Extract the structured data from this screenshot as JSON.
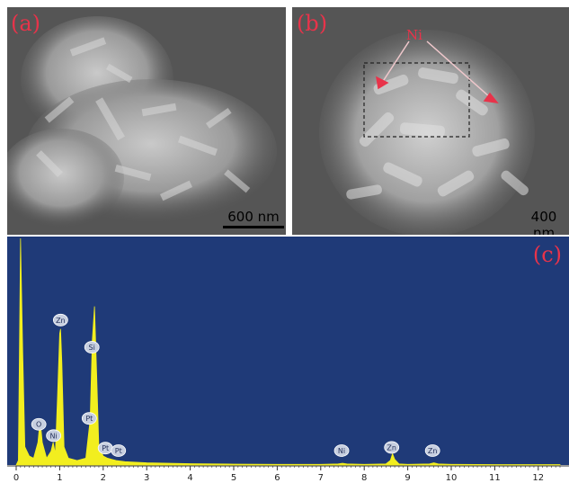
{
  "panels": {
    "a": {
      "label": "(a)",
      "scale_bar": "600 nm"
    },
    "b": {
      "label": "(b)",
      "scale_bar": "400 nm",
      "annotation": "Ni"
    },
    "c": {
      "label": "(c)"
    }
  },
  "colors": {
    "sem_background": "#5a5a5a",
    "spectrum_background": "#1f3a78",
    "spectrum_fill": "#f2ee1f",
    "panel_label": "#e8334a",
    "annotation_arrow": "#e8334a"
  },
  "chart_data": {
    "type": "area",
    "title": "",
    "xlabel": "",
    "ylabel": "",
    "xlim": [
      0,
      12.5
    ],
    "ylim": [
      0,
      100
    ],
    "x_ticks": [
      0,
      1,
      2,
      3,
      4,
      5,
      6,
      7,
      8,
      9,
      10,
      11,
      12
    ],
    "grid": false,
    "series": [
      {
        "x": [
          0,
          0.05,
          0.1,
          0.15,
          0.2,
          0.3,
          0.4,
          0.5,
          0.55,
          0.6,
          0.7,
          0.8,
          0.85,
          0.9,
          0.95,
          1.0,
          1.02,
          1.05,
          1.1,
          1.2,
          1.4,
          1.6,
          1.7,
          1.75,
          1.8,
          1.85,
          1.9,
          2.0,
          2.1,
          2.2,
          2.3,
          2.5,
          3.0,
          4.0,
          5.0,
          6.0,
          7.0,
          7.4,
          7.5,
          7.6,
          8.0,
          8.5,
          8.6,
          8.65,
          8.7,
          8.8,
          9.0,
          9.5,
          9.6,
          9.7,
          10.0,
          11.0,
          12.0,
          12.5
        ],
        "y": [
          0,
          2,
          100,
          50,
          8,
          4,
          3,
          10,
          20,
          10,
          3,
          6,
          10,
          5,
          30,
          58,
          60,
          45,
          8,
          3,
          2,
          3,
          20,
          55,
          70,
          40,
          8,
          4,
          3,
          2.5,
          2,
          1.5,
          1,
          0.6,
          0.4,
          0.3,
          0.3,
          0.5,
          0.8,
          0.5,
          0.3,
          0.5,
          2,
          5,
          2.5,
          0.5,
          0.3,
          0.5,
          1,
          0.5,
          0.3,
          0.2,
          0.2,
          0.2
        ]
      }
    ],
    "peak_labels": [
      {
        "text": "O",
        "x": 0.52
      },
      {
        "text": "Ni",
        "x": 0.86
      },
      {
        "text": "Zn",
        "x": 1.02
      },
      {
        "text": "Pt",
        "x": 1.68
      },
      {
        "text": "Si",
        "x": 1.74
      },
      {
        "text": "Pt",
        "x": 2.05
      },
      {
        "text": "Pt",
        "x": 2.35
      },
      {
        "text": "Ni",
        "x": 7.48
      },
      {
        "text": "Zn",
        "x": 8.63
      },
      {
        "text": "Zn",
        "x": 9.57
      }
    ]
  }
}
